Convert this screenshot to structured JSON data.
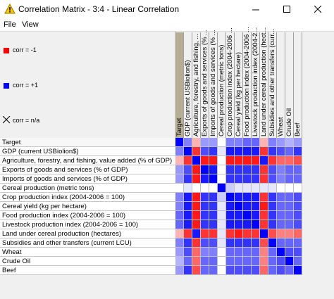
{
  "window": {
    "title": "Correlation Matrix - 3:4 - Linear Correlation",
    "app_icon": "warning-triangle-icon",
    "controls": [
      "minimize-icon",
      "maximize-icon",
      "close-icon"
    ]
  },
  "menu": {
    "file": "File",
    "view": "View"
  },
  "legend": {
    "neg_label": "corr = -1",
    "pos_label": "corr = +1",
    "na_label": "corr = n/a",
    "neg_color": "#ff0000",
    "pos_color": "#0000ff"
  },
  "columns": [
    "Target",
    "GDP (current USBiolion$)",
    "Agriculture, forestry, and fishing, ...",
    "Exports of goods and services (% ...",
    "Imports of goods and services (% ...",
    "Cereal production (metric tons)",
    "Crop production index (2004-2006 ...",
    "Cereal yield (kg per hectare)",
    "Food production index (2004-2006 ...",
    "Livestock production index (2004-2...",
    "Land under cereal production (hect...",
    "Subsidies and other transfers (curr...",
    "Wheat",
    "Crude Oil",
    "Beef"
  ],
  "rows": [
    "Target",
    "GDP (current USBiolion$)",
    "Agriculture, forestry, and fishing, value added (% of GDP)",
    "Exports of goods and services (% of GDP)",
    "Imports of goods and services (% of GDP)",
    "Cereal production (metric tons)",
    "Crop production index (2004-2006 = 100)",
    "Cereal yield (kg per hectare)",
    "Food production index (2004-2006 = 100)",
    "Livestock production index (2004-2006 = 100)",
    "Land under cereal production (hectares)",
    "Subsidies and other transfers (current LCU)",
    "Wheat",
    "Crude Oil",
    "Beef"
  ],
  "matrix": [
    [
      1.0,
      0.5,
      -0.3,
      0.4,
      0.4,
      0.0,
      0.5,
      0.5,
      0.6,
      0.6,
      -0.3,
      0.5,
      0.4,
      0.3,
      0.4
    ],
    [
      0.5,
      1.0,
      -0.8,
      0.7,
      0.8,
      0.1,
      0.9,
      0.9,
      0.9,
      0.9,
      -0.8,
      0.8,
      0.7,
      0.6,
      0.8
    ],
    [
      -0.3,
      -0.8,
      1.0,
      -0.9,
      -0.9,
      0.0,
      -0.9,
      -0.9,
      -0.9,
      -0.9,
      0.9,
      -0.8,
      -0.6,
      -0.6,
      -0.7
    ],
    [
      0.4,
      0.7,
      -0.9,
      1.0,
      0.9,
      0.0,
      0.8,
      0.8,
      0.8,
      0.8,
      -0.8,
      0.7,
      0.5,
      0.6,
      0.6
    ],
    [
      0.4,
      0.8,
      -0.9,
      0.9,
      1.0,
      0.0,
      0.8,
      0.8,
      0.8,
      0.8,
      -0.8,
      0.7,
      0.5,
      0.6,
      0.6
    ],
    [
      0.0,
      0.1,
      0.0,
      0.0,
      0.0,
      1.0,
      0.2,
      0.1,
      0.1,
      0.1,
      0.1,
      0.1,
      0.0,
      0.0,
      0.0
    ],
    [
      0.5,
      0.9,
      -0.9,
      0.8,
      0.8,
      0.2,
      1.0,
      0.9,
      0.9,
      0.9,
      -0.8,
      0.8,
      0.6,
      0.6,
      0.7
    ],
    [
      0.5,
      0.9,
      -0.9,
      0.8,
      0.8,
      0.1,
      0.9,
      1.0,
      0.9,
      0.9,
      -0.9,
      0.8,
      0.6,
      0.6,
      0.7
    ],
    [
      0.6,
      0.9,
      -0.9,
      0.8,
      0.8,
      0.1,
      0.9,
      0.9,
      1.0,
      0.9,
      -0.8,
      0.8,
      0.6,
      0.6,
      0.7
    ],
    [
      0.6,
      0.9,
      -0.9,
      0.8,
      0.8,
      0.1,
      0.9,
      0.9,
      0.9,
      1.0,
      -0.8,
      0.8,
      0.6,
      0.6,
      0.7
    ],
    [
      -0.3,
      -0.8,
      0.9,
      -0.8,
      -0.8,
      0.1,
      -0.8,
      -0.9,
      -0.8,
      -0.8,
      1.0,
      -0.7,
      -0.5,
      -0.5,
      -0.6
    ],
    [
      0.5,
      0.8,
      -0.8,
      0.7,
      0.7,
      0.1,
      0.8,
      0.8,
      0.8,
      0.8,
      -0.7,
      1.0,
      0.6,
      0.6,
      0.6
    ],
    [
      0.4,
      0.7,
      -0.6,
      0.5,
      0.5,
      0.0,
      0.6,
      0.6,
      0.6,
      0.6,
      -0.5,
      0.6,
      1.0,
      0.7,
      0.7
    ],
    [
      0.3,
      0.6,
      -0.6,
      0.6,
      0.6,
      0.0,
      0.6,
      0.6,
      0.6,
      0.6,
      -0.5,
      0.6,
      0.7,
      1.0,
      0.6
    ],
    [
      0.4,
      0.8,
      -0.7,
      0.6,
      0.6,
      0.0,
      0.7,
      0.7,
      0.7,
      0.7,
      -0.6,
      0.6,
      0.7,
      0.6,
      1.0
    ]
  ]
}
